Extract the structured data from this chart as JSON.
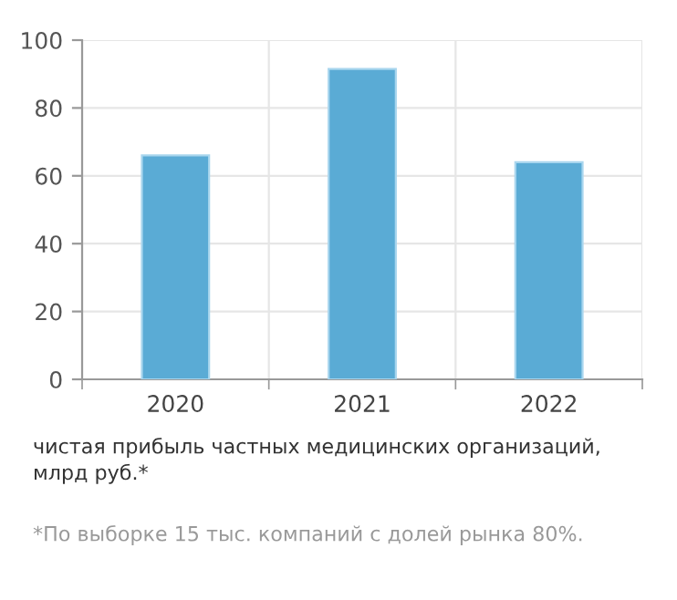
{
  "chart_data": {
    "type": "bar",
    "categories": [
      "2020",
      "2021",
      "2022"
    ],
    "values": [
      66,
      91.5,
      64
    ],
    "color": "#5aabd5",
    "ylim": [
      0,
      100
    ],
    "yticks": [
      0,
      20,
      40,
      60,
      80,
      100
    ],
    "grid": true,
    "annotations": [
      "чистая прибыль частных медицинских организаций,\nмлрд руб.*",
      "*По выборке 15 тыс. компаний с долей рынка 80%."
    ]
  }
}
